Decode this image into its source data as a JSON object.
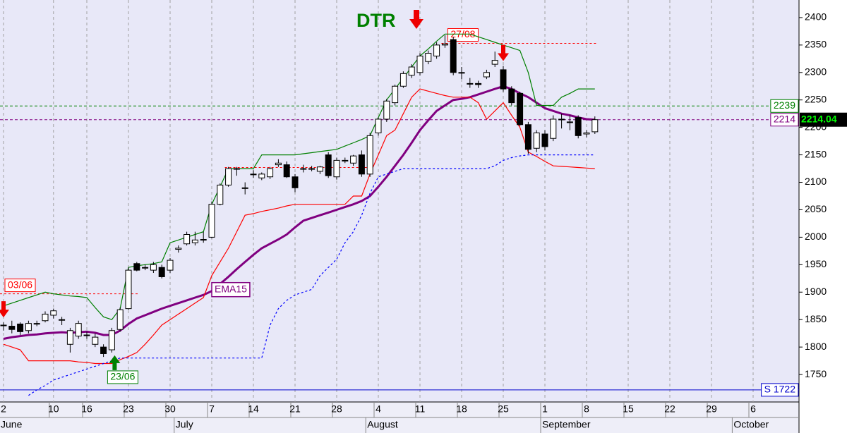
{
  "chart_data": {
    "type": "candlestick",
    "title": "DTR",
    "categories": [
      "2",
      null,
      null,
      null,
      null,
      null,
      "10",
      null,
      null,
      null,
      "16",
      null,
      null,
      null,
      null,
      "23",
      null,
      null,
      null,
      null,
      "30",
      null,
      null,
      null,
      null,
      "7",
      null,
      null,
      null,
      null,
      "14",
      null,
      null,
      null,
      null,
      "21",
      null,
      null,
      null,
      null,
      "28",
      null,
      null,
      null,
      null,
      "4",
      null,
      null,
      null,
      null,
      "11",
      null,
      null,
      null,
      null,
      "18",
      null,
      null,
      null,
      null,
      "25",
      null,
      null,
      null,
      null,
      "1",
      null,
      null,
      null,
      null,
      "8",
      null,
      null,
      null,
      null,
      "15",
      null,
      null,
      null,
      null,
      "22",
      null,
      null,
      null,
      null,
      "29",
      null,
      null,
      null,
      null,
      "6",
      null,
      null,
      null,
      null,
      null
    ],
    "months": [
      "June",
      null,
      null,
      null,
      null,
      null,
      null,
      null,
      null,
      null,
      null,
      null,
      null,
      null,
      null,
      null,
      null,
      null,
      null,
      null,
      null,
      "July",
      null,
      null,
      null,
      null,
      null,
      null,
      null,
      null,
      null,
      null,
      null,
      null,
      null,
      null,
      null,
      null,
      null,
      null,
      null,
      null,
      null,
      null,
      "August",
      null,
      null,
      null,
      null,
      null,
      null,
      null,
      null,
      null,
      null,
      null,
      null,
      null,
      null,
      null,
      null,
      null,
      null,
      null,
      null,
      "September",
      null,
      null,
      null,
      null,
      null,
      null,
      null,
      null,
      null,
      null,
      null,
      null,
      null,
      null,
      null,
      null,
      null,
      null,
      null,
      null,
      null,
      null,
      "October",
      null,
      null,
      null,
      null,
      null,
      null,
      null
    ],
    "open": [
      1840,
      1838,
      1842,
      1830,
      1843,
      1848,
      1858,
      1850,
      1805,
      1820,
      1822,
      1805,
      1800,
      1795,
      1832,
      1870,
      1952,
      1945,
      1940,
      1945,
      1940,
      1978,
      1988,
      1990,
      1995,
      2000,
      2060,
      2095,
      2125,
      2090,
      2115,
      2108,
      2110,
      2132,
      2132,
      2110,
      2125,
      2125,
      2120,
      2150,
      2110,
      2140,
      2135,
      2150,
      2115,
      2190,
      2215,
      2245,
      2275,
      2295,
      2300,
      2320,
      2330,
      2350,
      2360,
      2300,
      2280,
      2280,
      2292,
      2315,
      2305,
      2270,
      2262,
      2205,
      2162,
      2188,
      2180,
      2215,
      2210,
      2218,
      2188,
      2192,
      null,
      null,
      null,
      null,
      null,
      null,
      null,
      null,
      null,
      null,
      null,
      null,
      null,
      null,
      null,
      null,
      null,
      null,
      null,
      null,
      null,
      null,
      null,
      null
    ],
    "high": [
      1845,
      1848,
      1845,
      1848,
      1848,
      1865,
      1870,
      1855,
      1835,
      1848,
      1828,
      1825,
      1805,
      1835,
      1872,
      1945,
      1955,
      1950,
      1955,
      1950,
      1962,
      1985,
      2010,
      2010,
      2010,
      2065,
      2098,
      2128,
      2128,
      2100,
      2122,
      2118,
      2128,
      2142,
      2138,
      2115,
      2132,
      2130,
      2130,
      2155,
      2145,
      2145,
      2150,
      2158,
      2190,
      2218,
      2252,
      2278,
      2302,
      2315,
      2335,
      2340,
      2355,
      2368,
      2365,
      2310,
      2290,
      2285,
      2305,
      2338,
      2312,
      2275,
      2265,
      2210,
      2195,
      2195,
      2222,
      2225,
      2222,
      2222,
      2195,
      2220,
      null,
      null,
      null,
      null,
      null,
      null,
      null,
      null,
      null,
      null,
      null,
      null,
      null,
      null,
      null,
      null,
      null,
      null,
      null,
      null,
      null,
      null,
      null,
      null
    ],
    "low": [
      1830,
      1825,
      1822,
      1825,
      1838,
      1845,
      1852,
      1840,
      1790,
      1815,
      1815,
      1800,
      1782,
      1790,
      1828,
      1868,
      1938,
      1940,
      1935,
      1925,
      1935,
      1972,
      1985,
      1985,
      1990,
      1998,
      2058,
      2092,
      2112,
      2078,
      2108,
      2104,
      2106,
      2128,
      2108,
      2082,
      2118,
      2120,
      2115,
      2108,
      2105,
      2135,
      2130,
      2110,
      2110,
      2185,
      2210,
      2240,
      2272,
      2290,
      2295,
      2315,
      2325,
      2345,
      2295,
      2288,
      2272,
      2272,
      2288,
      2310,
      2265,
      2240,
      2202,
      2152,
      2155,
      2158,
      2175,
      2198,
      2195,
      2180,
      2182,
      2188,
      null,
      null,
      null,
      null,
      null,
      null,
      null,
      null,
      null,
      null,
      null,
      null,
      null,
      null,
      null,
      null,
      null,
      null,
      null,
      null,
      null,
      null,
      null,
      null
    ],
    "close": [
      1840,
      1832,
      1828,
      1843,
      1843,
      1860,
      1866,
      1850,
      1830,
      1843,
      1822,
      1818,
      1788,
      1830,
      1868,
      1940,
      1940,
      1945,
      1950,
      1928,
      1958,
      1980,
      2005,
      1995,
      1996,
      2060,
      2095,
      2125,
      2125,
      2090,
      2115,
      2115,
      2125,
      2135,
      2110,
      2090,
      2125,
      2125,
      2128,
      2112,
      2140,
      2140,
      2148,
      2115,
      2185,
      2215,
      2248,
      2275,
      2298,
      2310,
      2330,
      2335,
      2350,
      2352,
      2300,
      2300,
      2280,
      2278,
      2300,
      2322,
      2270,
      2245,
      2205,
      2160,
      2190,
      2165,
      2215,
      2215,
      2210,
      2185,
      2190,
      2214.04,
      null,
      null,
      null,
      null,
      null,
      null,
      null,
      null,
      null,
      null,
      null,
      null,
      null,
      null,
      null,
      null,
      null,
      null,
      null,
      null,
      null,
      null,
      null,
      null
    ],
    "lines": [
      {
        "name": "EMA15",
        "color": "#800080",
        "style": "thick",
        "values": [
          1815,
          1818,
          1820,
          1822,
          1823,
          1825,
          1826,
          1827,
          1826,
          1827,
          1828,
          1826,
          1822,
          1822,
          1830,
          1842,
          1852,
          1858,
          1864,
          1870,
          1875,
          1880,
          1885,
          1890,
          1895,
          1902,
          1915,
          1928,
          1942,
          1955,
          1968,
          1980,
          1988,
          1996,
          2005,
          2018,
          2030,
          2035,
          2040,
          2045,
          2050,
          2055,
          2060,
          2066,
          2075,
          2092,
          2110,
          2130,
          2150,
          2172,
          2195,
          2213,
          2230,
          2240,
          2250,
          2252,
          2255,
          2260,
          2265,
          2270,
          2275,
          2270,
          2262,
          2255,
          2245,
          2235,
          2230,
          2225,
          2222,
          2218,
          2215,
          2214,
          null,
          null,
          null,
          null,
          null,
          null,
          null,
          null,
          null,
          null,
          null,
          null,
          null,
          null,
          null,
          null,
          null,
          null,
          null,
          null,
          null,
          null,
          null,
          null
        ]
      },
      {
        "color": "#008000",
        "style": "solid",
        "values": [
          1875,
          1880,
          1885,
          1890,
          1895,
          1900,
          1897,
          1895,
          1893,
          1892,
          1890,
          1872,
          1855,
          1850,
          1870,
          1945,
          1948,
          1950,
          1952,
          1955,
          1990,
          1995,
          2000,
          2005,
          2010,
          2060,
          2092,
          2125,
          2125,
          2125,
          2125,
          2150,
          2150,
          2150,
          2150,
          2150,
          2152,
          2154,
          2156,
          2158,
          2160,
          2166,
          2172,
          2178,
          2185,
          2218,
          2250,
          2270,
          2290,
          2310,
          2330,
          2343,
          2357,
          2370,
          2370,
          2370,
          2370,
          2365,
          2360,
          2355,
          2350,
          2345,
          2340,
          2300,
          2240,
          2240,
          2240,
          2255,
          2262,
          2270,
          2270,
          2270,
          null,
          null,
          null,
          null,
          null,
          null,
          null,
          null,
          null,
          null,
          null,
          null,
          null,
          null,
          null,
          null,
          null,
          null,
          null,
          null,
          null,
          null,
          null,
          null
        ]
      },
      {
        "color": "#ff0000",
        "style": "solid",
        "values": [
          1805,
          1800,
          1795,
          1775,
          1775,
          1775,
          1775,
          1775,
          1775,
          1773,
          1772,
          1770,
          1770,
          1770,
          1777,
          1783,
          1790,
          1805,
          1822,
          1840,
          1850,
          1860,
          1870,
          1880,
          1890,
          1930,
          1955,
          1980,
          2010,
          2040,
          2043,
          2047,
          2050,
          2053,
          2057,
          2060,
          2060,
          2060,
          2060,
          2060,
          2060,
          2060,
          2075,
          2075,
          2115,
          2150,
          2185,
          2195,
          2225,
          2255,
          2270,
          2266,
          2262,
          2258,
          2255,
          2255,
          2255,
          2245,
          2215,
          2230,
          2245,
          2222,
          2200,
          2155,
          2147,
          2138,
          2130,
          2129,
          2128,
          2127,
          2126,
          2125,
          null,
          null,
          null,
          null,
          null,
          null,
          null,
          null,
          null,
          null,
          null,
          null,
          null,
          null,
          null,
          null,
          null,
          null,
          null,
          null,
          null,
          null,
          null,
          null
        ]
      },
      {
        "color": "#0000ff",
        "style": "dotted",
        "values": [
          null,
          null,
          null,
          1712,
          1722,
          1730,
          1740,
          1745,
          1750,
          1755,
          1760,
          1765,
          1770,
          1775,
          1780,
          1780,
          1780,
          1780,
          1780,
          1780,
          1780,
          1780,
          1780,
          1780,
          1780,
          1780,
          1780,
          1780,
          1780,
          1780,
          1780,
          1780,
          1840,
          1870,
          1885,
          1895,
          1900,
          1905,
          1930,
          1945,
          1960,
          1990,
          2010,
          2040,
          2080,
          2110,
          2115,
          2120,
          2125,
          2125,
          2125,
          2125,
          2125,
          2125,
          2125,
          2125,
          2125,
          2125,
          2125,
          2130,
          2140,
          2145,
          2148,
          2150,
          2150,
          2150,
          2150,
          2150,
          2150,
          2150,
          2150,
          2150,
          null,
          null,
          null,
          null,
          null,
          null,
          null,
          null,
          null,
          null,
          null,
          null,
          null,
          null,
          null,
          null,
          null,
          null,
          null,
          null,
          null,
          null,
          null,
          null
        ]
      }
    ],
    "resistances": [
      {
        "value": 1897,
        "start": 0,
        "end": 16,
        "label": "03/06"
      },
      {
        "value": 2127,
        "start": 27,
        "end": 44
      },
      {
        "value": 2353,
        "start": 53,
        "end": 71,
        "label": "27/08"
      }
    ],
    "signals": [
      {
        "kind": "sell",
        "index": 0
      },
      {
        "kind": "buy",
        "index": 13,
        "label": "23/06"
      },
      {
        "kind": "sell",
        "index": 60
      }
    ],
    "levels": [
      {
        "value": 2239,
        "label": "2239",
        "color": "#008000",
        "style": "dashed"
      },
      {
        "value": 2214,
        "label": "2214",
        "color": "#800080",
        "style": "dashed"
      },
      {
        "value": 1722,
        "label": "S 1722",
        "color": "#0000cc",
        "style": "solid"
      }
    ],
    "last": 2214.04,
    "ylim": [
      1700,
      2432
    ],
    "yticks": [
      1750,
      1800,
      1850,
      1900,
      1950,
      2000,
      2050,
      2100,
      2150,
      2200,
      2250,
      2300,
      2350,
      2400
    ],
    "grid": true
  }
}
